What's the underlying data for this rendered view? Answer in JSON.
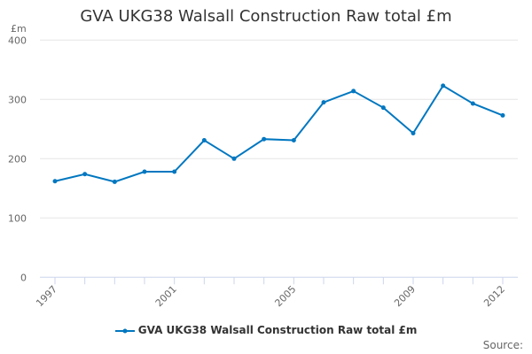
{
  "chart_data": {
    "type": "line",
    "title": "GVA UKG38 Walsall Construction Raw total £m",
    "ylabel": "£m",
    "xlabel": "",
    "ylim": [
      0,
      400
    ],
    "yticks": [
      "0",
      "100",
      "200",
      "300",
      "400"
    ],
    "xticks": [
      "1997",
      "2001",
      "2005",
      "2009",
      "2012"
    ],
    "x": [
      1997,
      1998,
      1999,
      2000,
      2001,
      2002,
      2003,
      2004,
      2005,
      2006,
      2007,
      2008,
      2009,
      2010,
      2011,
      2012
    ],
    "series": [
      {
        "name": "GVA UKG38 Walsall Construction Raw total £m",
        "color": "#0077c0",
        "values": [
          162,
          174,
          161,
          178,
          178,
          231,
          200,
          233,
          231,
          295,
          314,
          286,
          243,
          323,
          293,
          273
        ]
      }
    ],
    "grid": true,
    "legend": "bottom-center"
  },
  "source_label": "Source:"
}
